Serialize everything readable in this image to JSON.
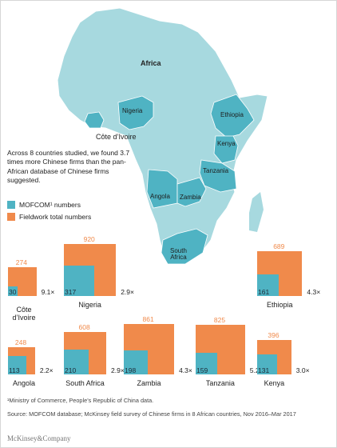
{
  "map": {
    "title": "Africa",
    "land_color": "#a7d9df",
    "highlight_color": "#4fb3c3",
    "country_labels": {
      "nigeria": "Nigeria",
      "ethiopia": "Ethiopia",
      "kenya": "Kenya",
      "tanzania": "Tanzania",
      "angola": "Angola",
      "zambia": "Zambia",
      "south_africa_line1": "South",
      "south_africa_line2": "Africa"
    },
    "cote_divoire_label": "Côte d’Ivoire"
  },
  "intro": "Across 8 countries studied, we found 3.7 times more Chinese firms than the pan-African database of Chinese firms suggested.",
  "legend": {
    "mofcom": {
      "label": "MOFCOM¹ numbers",
      "color": "#4fb3c3"
    },
    "fieldwork": {
      "label": "Fieldwork total numbers",
      "color": "#f08a4b"
    }
  },
  "comparisons": [
    {
      "country": "Côte d’Ivoire",
      "fieldwork_total": "274",
      "mofcom": "30",
      "ratio": "9.1×"
    },
    {
      "country": "Nigeria",
      "fieldwork_total": "920",
      "mofcom": "317",
      "ratio": "2.9×"
    },
    {
      "country": "Ethiopia",
      "fieldwork_total": "689",
      "mofcom": "161",
      "ratio": "4.3×"
    },
    {
      "country": "Angola",
      "fieldwork_total": "248",
      "mofcom": "113",
      "ratio": "2.2×"
    },
    {
      "country": "South Africa",
      "fieldwork_total": "608",
      "mofcom": "210",
      "ratio": "2.9×"
    },
    {
      "country": "Zambia",
      "fieldwork_total": "861",
      "mofcom": "198",
      "ratio": "4.3×"
    },
    {
      "country": "Tanzania",
      "fieldwork_total": "825",
      "mofcom": "159",
      "ratio": "5.2×"
    },
    {
      "country": "Kenya",
      "fieldwork_total": "396",
      "mofcom": "131",
      "ratio": "3.0×"
    }
  ],
  "footnote": "¹Ministry of Commerce, People’s Republic of China data.",
  "source": "Source: MOFCOM database; McKinsey field survey of Chinese firms in 8 African countries, Nov 2016–Mar 2017",
  "brand": "McKinsey&Company"
}
